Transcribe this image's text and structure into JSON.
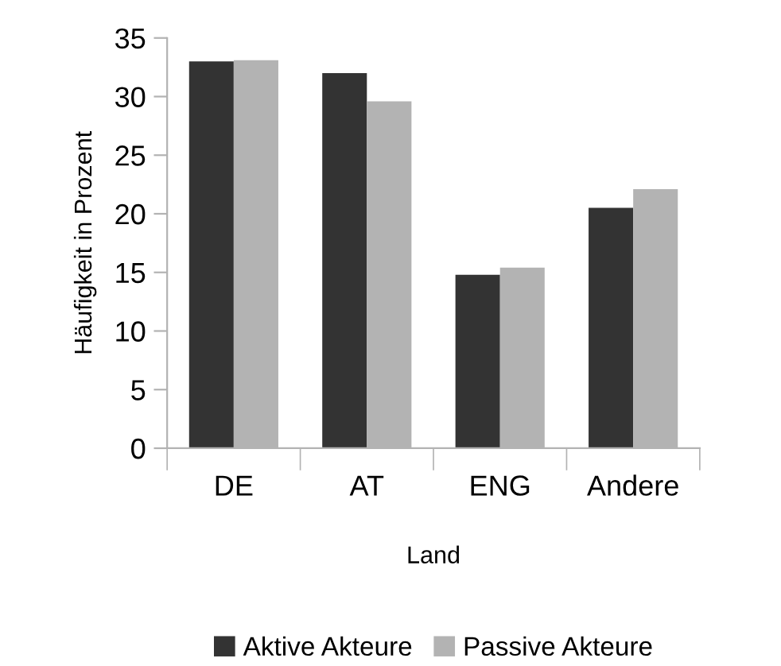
{
  "chart_data": {
    "type": "bar",
    "xlabel": "Land",
    "ylabel": "Häufigkeit in Prozent",
    "categories": [
      "DE",
      "AT",
      "ENG",
      "Andere"
    ],
    "series": [
      {
        "name": "Aktive Akteure",
        "color": "#333333",
        "values": [
          33.0,
          32.0,
          14.8,
          20.5
        ]
      },
      {
        "name": "Passive Akteure",
        "color": "#b3b3b3",
        "values": [
          33.1,
          29.6,
          15.4,
          22.1
        ]
      }
    ],
    "ylim": [
      0,
      35
    ],
    "yticks": [
      0,
      5,
      10,
      15,
      20,
      25,
      30,
      35
    ],
    "grid": false,
    "legend": "bottom"
  }
}
